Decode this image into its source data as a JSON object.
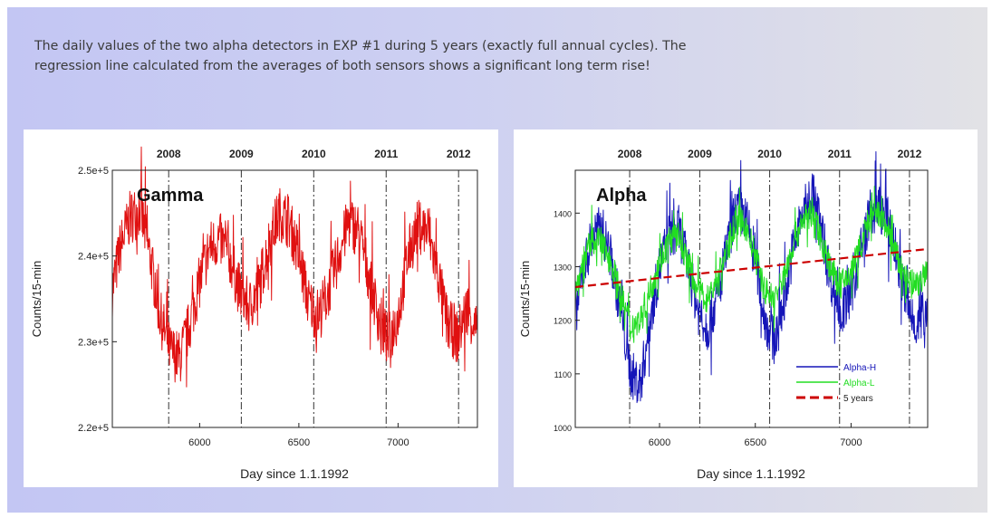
{
  "caption": "The daily values of the two alpha detectors in EXP #1 during 5 years (exactly full annual cycles). The regression line calculated from the averages of both sensors shows a significant long term rise!",
  "colors": {
    "gamma": "#e01010",
    "alpha_h": "#1515b8",
    "alpha_l": "#22dd22",
    "trend": "#cc0000"
  },
  "chart_data": [
    {
      "type": "line",
      "title": "Gamma",
      "xlabel": "Day since 1.1.1992",
      "ylabel": "Counts/15-min",
      "xlim": [
        5560,
        7400
      ],
      "ylim": [
        220000,
        250000
      ],
      "x_ticks": [
        6000,
        6500,
        7000
      ],
      "x_tick_labels": [
        "6000",
        "6500",
        "7000"
      ],
      "y_ticks": [
        220000,
        230000,
        240000,
        250000
      ],
      "y_tick_labels": [
        "2.2e+5",
        "2.3e+5",
        "2.4e+5",
        "2.5e+5"
      ],
      "year_markers": [
        {
          "label": "2008",
          "x": 5844
        },
        {
          "label": "2009",
          "x": 6210
        },
        {
          "label": "2010",
          "x": 6575
        },
        {
          "label": "2011",
          "x": 6940
        },
        {
          "label": "2012",
          "x": 7305
        }
      ],
      "series": [
        {
          "color_key": "gamma",
          "x": [
            5560,
            5600,
            5650,
            5700,
            5750,
            5800,
            5850,
            5900,
            5950,
            6000,
            6050,
            6100,
            6150,
            6200,
            6250,
            6300,
            6350,
            6400,
            6450,
            6500,
            6550,
            6600,
            6650,
            6700,
            6750,
            6800,
            6850,
            6900,
            6950,
            7000,
            7050,
            7100,
            7150,
            7200,
            7250,
            7300,
            7350,
            7400
          ],
          "y": [
            236000,
            241000,
            244500,
            245500,
            240000,
            233000,
            229000,
            228000,
            232000,
            237000,
            241000,
            242000,
            240000,
            236000,
            234000,
            236500,
            241500,
            245000,
            244000,
            240000,
            234500,
            233000,
            236000,
            240000,
            244000,
            243000,
            238000,
            233000,
            230000,
            233000,
            240000,
            243500,
            243000,
            238000,
            232000,
            230500,
            234000,
            231000
          ]
        }
      ]
    },
    {
      "type": "line",
      "title": "Alpha",
      "xlabel": "Day since 1.1.1992",
      "ylabel": "Counts/15-min",
      "xlim": [
        5560,
        7400
      ],
      "ylim": [
        1000,
        1480
      ],
      "x_ticks": [
        6000,
        6500,
        7000
      ],
      "x_tick_labels": [
        "6000",
        "6500",
        "7000"
      ],
      "y_ticks": [
        1000,
        1100,
        1200,
        1300,
        1400
      ],
      "y_tick_labels": [
        "1000",
        "1100",
        "1200",
        "1300",
        "1400"
      ],
      "year_markers": [
        {
          "label": "2008",
          "x": 5844
        },
        {
          "label": "2009",
          "x": 6210
        },
        {
          "label": "2010",
          "x": 6575
        },
        {
          "label": "2011",
          "x": 6940
        },
        {
          "label": "2012",
          "x": 7305
        }
      ],
      "legend_position": "bottom-right",
      "series": [
        {
          "name": "Alpha-H",
          "color_key": "alpha_h",
          "x": [
            5560,
            5600,
            5650,
            5700,
            5750,
            5800,
            5850,
            5900,
            5950,
            6000,
            6050,
            6100,
            6150,
            6200,
            6250,
            6300,
            6350,
            6400,
            6450,
            6500,
            6550,
            6600,
            6650,
            6700,
            6750,
            6800,
            6850,
            6900,
            6950,
            7000,
            7050,
            7100,
            7150,
            7200,
            7250,
            7300,
            7350,
            7400
          ],
          "y": [
            1210,
            1290,
            1360,
            1370,
            1310,
            1210,
            1100,
            1080,
            1200,
            1300,
            1360,
            1370,
            1300,
            1220,
            1185,
            1240,
            1330,
            1410,
            1390,
            1320,
            1200,
            1160,
            1240,
            1340,
            1400,
            1440,
            1360,
            1270,
            1210,
            1250,
            1330,
            1400,
            1410,
            1380,
            1300,
            1220,
            1190,
            1230
          ]
        },
        {
          "name": "Alpha-L",
          "color_key": "alpha_l",
          "x": [
            5560,
            5600,
            5650,
            5700,
            5750,
            5800,
            5850,
            5900,
            5950,
            6000,
            6050,
            6100,
            6150,
            6200,
            6250,
            6300,
            6350,
            6400,
            6450,
            6500,
            6550,
            6600,
            6650,
            6700,
            6750,
            6800,
            6850,
            6900,
            6950,
            7000,
            7050,
            7100,
            7150,
            7200,
            7250,
            7300,
            7350,
            7400
          ],
          "y": [
            1250,
            1310,
            1350,
            1345,
            1305,
            1245,
            1190,
            1200,
            1255,
            1310,
            1350,
            1355,
            1305,
            1255,
            1240,
            1275,
            1330,
            1390,
            1375,
            1320,
            1255,
            1240,
            1280,
            1345,
            1390,
            1400,
            1345,
            1290,
            1265,
            1290,
            1340,
            1395,
            1395,
            1365,
            1305,
            1265,
            1270,
            1285
          ]
        },
        {
          "name": "5 years",
          "color_key": "trend",
          "style": "dashed",
          "x": [
            5560,
            7400
          ],
          "y": [
            1262,
            1333
          ]
        }
      ]
    }
  ]
}
